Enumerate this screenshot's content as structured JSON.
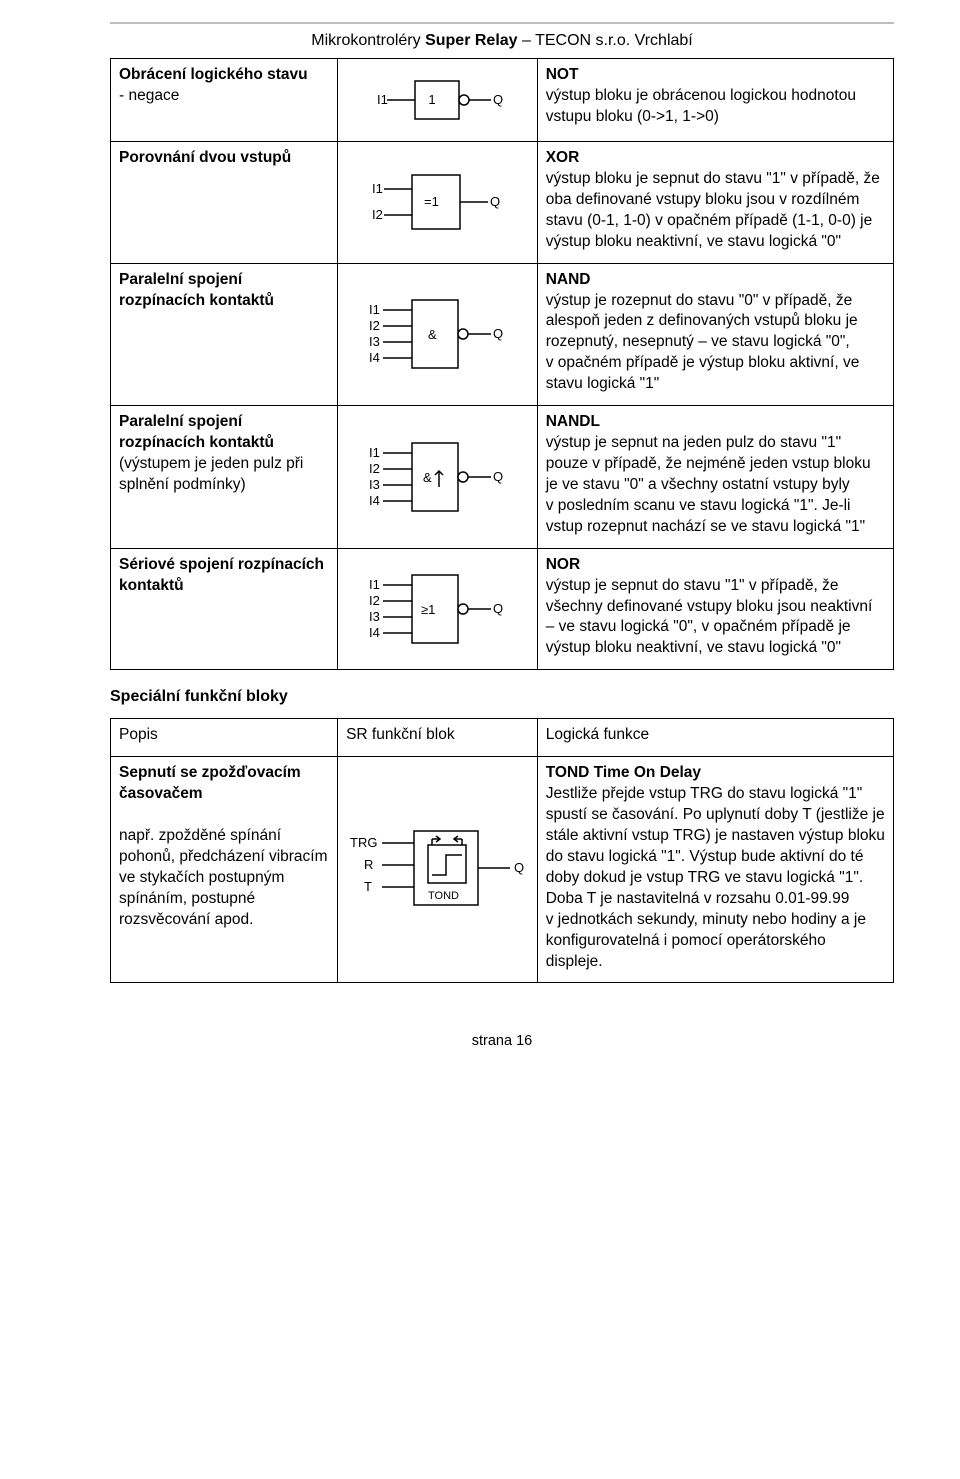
{
  "header": {
    "prefix": "Mikrokontroléry ",
    "bold": "Super Relay",
    "suffix": " – TECON s.r.o. Vrchlabí"
  },
  "table1": {
    "rows": [
      {
        "left_html": "<span class=\"b\">Obrácení logického stavu</span><br>- negace",
        "symbol": "not",
        "right_html": "<span class=\"b\">NOT</span><br>výstup bloku je obrácenou logickou hodnotou vstupu bloku (0-&gt;1, 1-&gt;0)"
      },
      {
        "left_html": "<span class=\"b\">Porovnání dvou vstupů</span>",
        "symbol": "xor",
        "right_html": "<span class=\"b\">XOR</span><br>výstup bloku je sepnut do stavu \"1\" v&nbsp;případě, že oba definované vstupy bloku jsou v&nbsp;rozdílném stavu (0-1, 1-0) v&nbsp;opačném případě (1-1, 0-0) je výstup bloku neaktivní, ve stavu logická \"0\""
      },
      {
        "left_html": "<span class=\"b\">Paralelní spojení rozpínacích kontaktů</span>",
        "symbol": "nand",
        "right_html": "<span class=\"b\">NAND</span><br>výstup je rozepnut do stavu \"0\" v&nbsp;případě, že alespoň jeden z definovaných vstupů bloku je rozepnutý, nesepnutý – ve stavu logická \"0\", v&nbsp;opačném případě je výstup bloku aktivní, ve stavu logická \"1\""
      },
      {
        "left_html": "<span class=\"b\">Paralelní spojení rozpínacích kontaktů</span><br>(výstupem je jeden pulz při splnění podmínky)",
        "symbol": "nandl",
        "right_html": "<span class=\"b\">NANDL</span><br>výstup je sepnut na jeden pulz do stavu \"1\" pouze v&nbsp;případě, že nejméně jeden vstup bloku je ve stavu \"0\" a všechny ostatní vstupy byly v&nbsp;posledním scanu ve stavu logická \"1\". Je-li vstup rozepnut nachází se ve stavu logická \"1\""
      },
      {
        "left_html": "<span class=\"b\">Sériové spojení rozpínacích kontaktů</span>",
        "symbol": "nor",
        "right_html": "<span class=\"b\">NOR</span><br>výstup je sepnut do stavu \"1\" v&nbsp;případě, že všechny definované vstupy bloku jsou neaktivní – ve stavu logická \"0\", v&nbsp;opačném případě je výstup bloku neaktivní, ve stavu logická \"0\""
      }
    ]
  },
  "section_heading": "Speciální funkční bloky",
  "table2": {
    "header": {
      "c1": "Popis",
      "c2": "SR funkční blok",
      "c3": "Logická funkce"
    },
    "rows": [
      {
        "left_html": "<span class=\"b\">Sepnutí se zpožďovacím časovačem</span><br><br>např. zpožděné spínání pohonů, předcházení vibracím ve stykačích postupným spínáním, postupné rozsvěcování apod.",
        "symbol": "tond",
        "right_html": "<span class=\"b\">TOND Time On Delay</span><br>Jestliže přejde vstup TRG do stavu logická \"1\" spustí se časování. Po uplynutí doby T (jestliže je stále aktivní vstup TRG) je nastaven výstup bloku do stavu logická \"1\". Výstup bude aktivní do té doby dokud je vstup TRG ve stavu logická \"1\".<br>Doba T je nastavitelná v&nbsp;rozsahu 0.01-99.99 v&nbsp;jednotkách sekundy, minuty nebo hodiny a je konfigurovatelná i pomocí operátorského displeje."
      }
    ]
  },
  "page_number": "strana 16",
  "svg": {
    "stroke": "#000000",
    "fill": "#ffffff",
    "text_color": "#000000"
  }
}
